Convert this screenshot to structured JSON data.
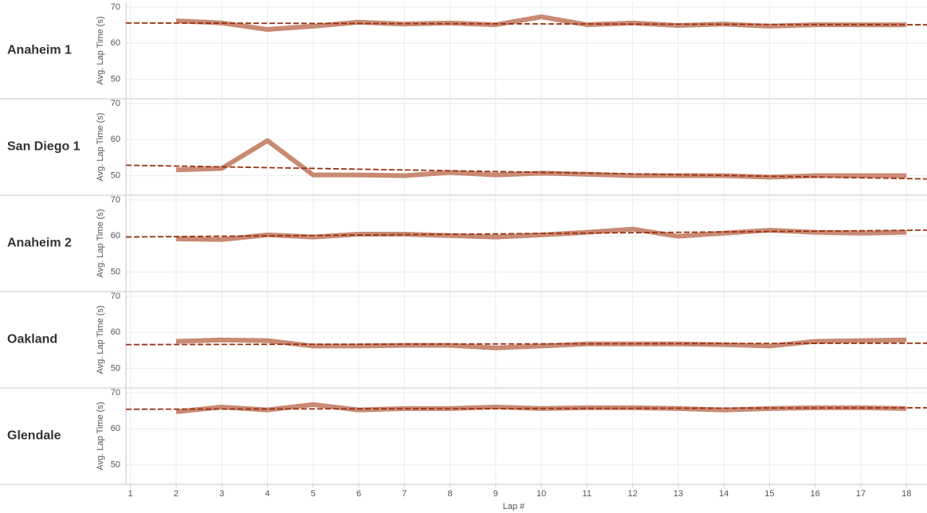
{
  "chart_data": [
    {
      "type": "line",
      "title": "Anaheim 1",
      "ylabel": "Avg. Lap Time (s)",
      "ylim": [
        44.6,
        71.3
      ],
      "yticks": [
        50,
        60,
        70
      ],
      "xlim": [
        0.9,
        18.45
      ],
      "xticks": [
        1,
        2,
        3,
        4,
        5,
        6,
        7,
        8,
        9,
        10,
        11,
        12,
        13,
        14,
        15,
        16,
        17,
        18
      ],
      "grid": true,
      "x": [
        2,
        3,
        4,
        5,
        6,
        7,
        8,
        9,
        10,
        11,
        12,
        13,
        14,
        15,
        16,
        17,
        18
      ],
      "color": "#c98a74",
      "values": [
        66.2,
        65.6,
        63.8,
        64.7,
        65.8,
        65.3,
        65.6,
        65.1,
        67.3,
        65.1,
        65.6,
        64.9,
        65.3,
        64.7,
        65.1,
        65.1,
        65.1
      ],
      "trend": {
        "color": "#9a3412",
        "x": [
          0.9,
          18.45
        ],
        "values": [
          65.6,
          65.1
        ]
      }
    },
    {
      "type": "line",
      "title": "San Diego 1",
      "ylabel": "Avg. Lap Time (s)",
      "ylim": [
        44.6,
        71.3
      ],
      "yticks": [
        50,
        60,
        70
      ],
      "xlim": [
        0.9,
        18.45
      ],
      "xticks": [
        1,
        2,
        3,
        4,
        5,
        6,
        7,
        8,
        9,
        10,
        11,
        12,
        13,
        14,
        15,
        16,
        17,
        18
      ],
      "grid": true,
      "x": [
        2,
        3,
        4,
        5,
        6,
        7,
        8,
        9,
        10,
        11,
        12,
        13,
        14,
        15,
        16,
        17,
        18
      ],
      "color": "#c98a74",
      "values": [
        51.6,
        52.0,
        59.7,
        50.2,
        50.2,
        50.0,
        50.9,
        50.2,
        50.7,
        50.4,
        50.0,
        50.0,
        50.0,
        49.6,
        50.0,
        50.0,
        50.0
      ],
      "trend": {
        "color": "#9a3412",
        "x": [
          0.9,
          18.45
        ],
        "values": [
          52.9,
          49.1
        ]
      }
    },
    {
      "type": "line",
      "title": "Anaheim 2",
      "ylabel": "Avg. Lap Time (s)",
      "ylim": [
        44.6,
        71.3
      ],
      "yticks": [
        50,
        60,
        70
      ],
      "xlim": [
        0.9,
        18.45
      ],
      "xticks": [
        1,
        2,
        3,
        4,
        5,
        6,
        7,
        8,
        9,
        10,
        11,
        12,
        13,
        14,
        15,
        16,
        17,
        18
      ],
      "grid": true,
      "x": [
        2,
        3,
        4,
        5,
        6,
        7,
        8,
        9,
        10,
        11,
        12,
        13,
        14,
        15,
        16,
        17,
        18
      ],
      "color": "#c98a74",
      "values": [
        59.2,
        59.0,
        60.3,
        59.7,
        60.5,
        60.5,
        60.1,
        59.7,
        60.3,
        61.0,
        61.9,
        59.9,
        60.8,
        61.6,
        61.0,
        60.8,
        61.0
      ],
      "trend": {
        "color": "#9a3412",
        "x": [
          0.9,
          18.45
        ],
        "values": [
          59.7,
          61.6
        ]
      }
    },
    {
      "type": "line",
      "title": "Oakland",
      "ylabel": "Avg. Lap Time (s)",
      "ylim": [
        44.6,
        71.3
      ],
      "yticks": [
        50,
        60,
        70
      ],
      "xlim": [
        0.9,
        18.45
      ],
      "xticks": [
        1,
        2,
        3,
        4,
        5,
        6,
        7,
        8,
        9,
        10,
        11,
        12,
        13,
        14,
        15,
        16,
        17,
        18
      ],
      "grid": true,
      "x": [
        2,
        3,
        4,
        5,
        6,
        7,
        8,
        9,
        10,
        11,
        12,
        13,
        14,
        15,
        16,
        17,
        18
      ],
      "color": "#c98a74",
      "values": [
        57.5,
        57.9,
        57.7,
        56.2,
        56.2,
        56.4,
        56.4,
        55.7,
        56.2,
        56.8,
        56.8,
        56.8,
        56.6,
        56.2,
        57.5,
        57.7,
        57.9
      ],
      "trend": {
        "color": "#9a3412",
        "x": [
          0.9,
          18.45
        ],
        "values": [
          56.6,
          57.0
        ]
      }
    },
    {
      "type": "line",
      "title": "Glendale",
      "ylabel": "Avg. Lap Time (s)",
      "xlabel": "Lap #",
      "ylim": [
        44.6,
        71.3
      ],
      "yticks": [
        50,
        60,
        70
      ],
      "xlim": [
        0.9,
        18.45
      ],
      "xticks": [
        1,
        2,
        3,
        4,
        5,
        6,
        7,
        8,
        9,
        10,
        11,
        12,
        13,
        14,
        15,
        16,
        17,
        18
      ],
      "grid": true,
      "x": [
        2,
        3,
        4,
        5,
        6,
        7,
        8,
        9,
        10,
        11,
        12,
        13,
        14,
        15,
        16,
        17,
        18
      ],
      "color": "#c98a74",
      "values": [
        64.7,
        66.0,
        65.2,
        66.7,
        65.2,
        65.6,
        65.6,
        66.0,
        65.6,
        65.8,
        65.8,
        65.6,
        65.2,
        65.6,
        65.8,
        65.8,
        65.6
      ],
      "trend": {
        "color": "#9a3412",
        "x": [
          0.9,
          18.45
        ],
        "values": [
          65.4,
          65.8
        ]
      }
    }
  ]
}
